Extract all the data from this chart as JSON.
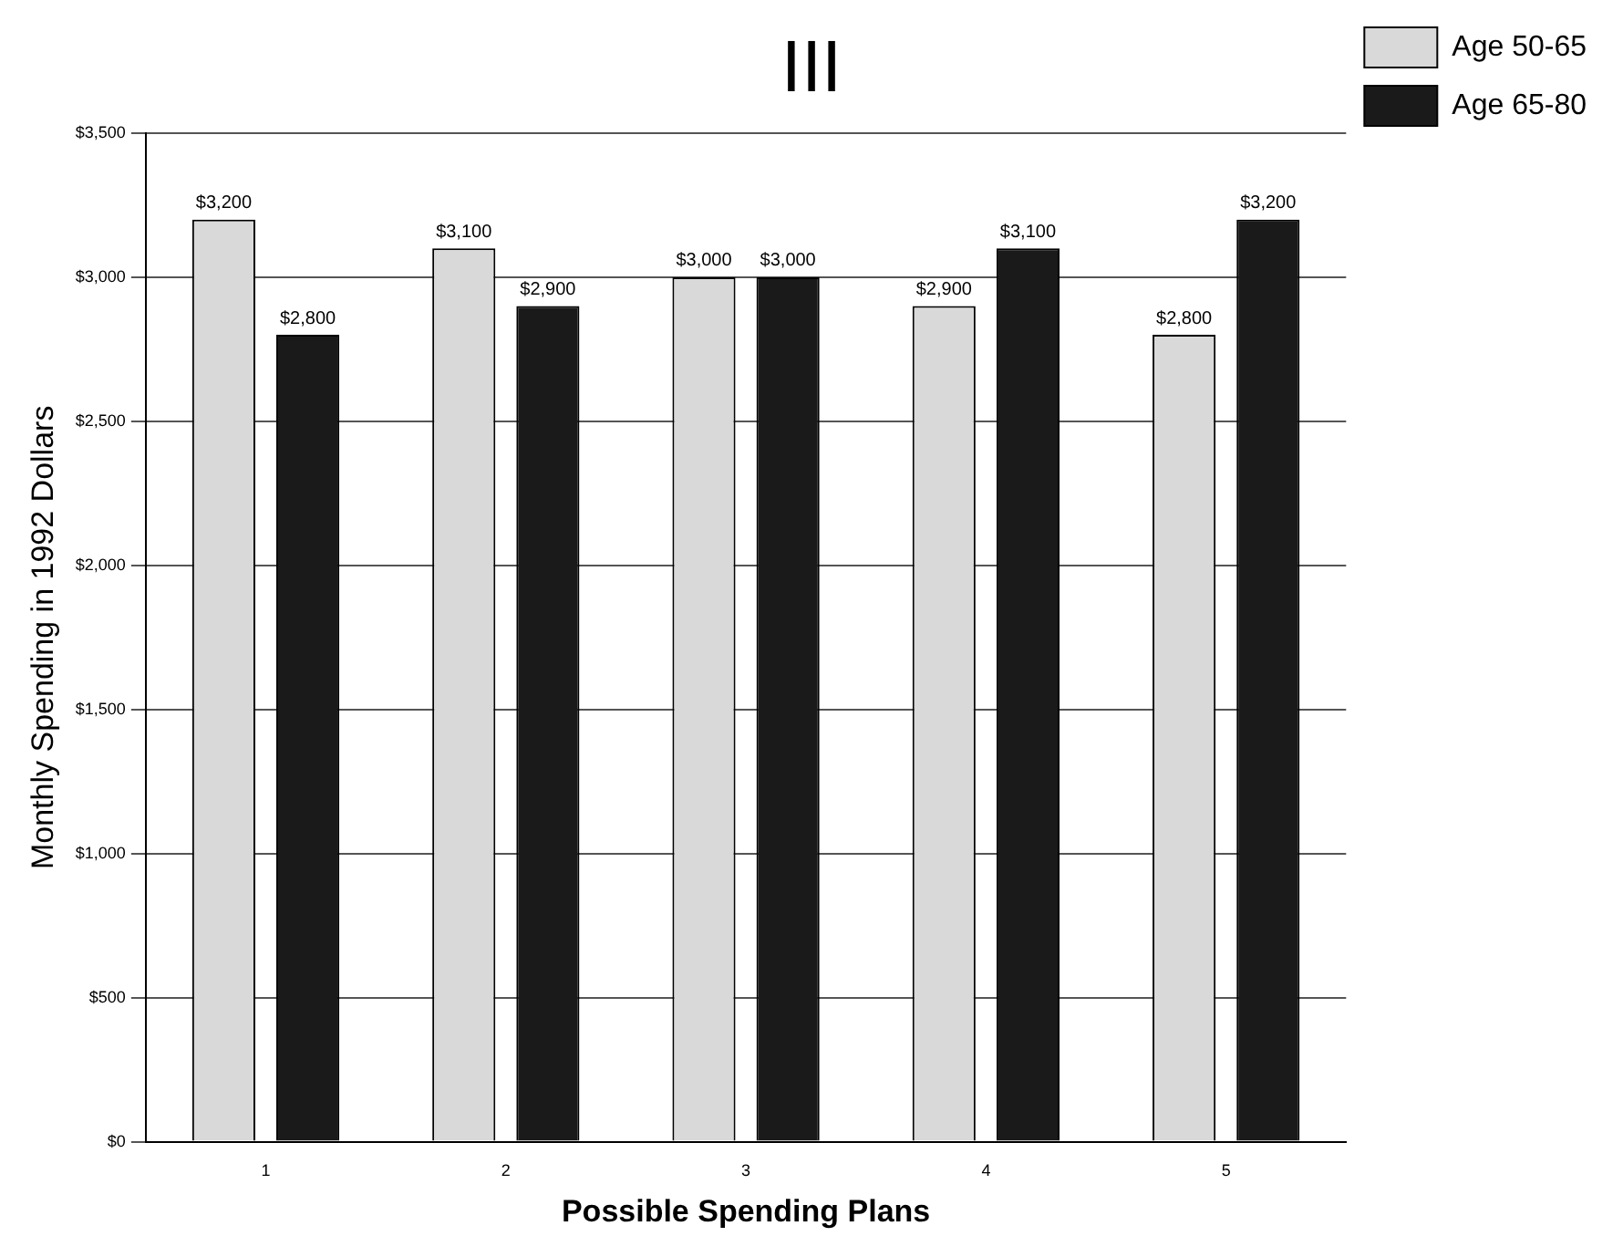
{
  "chart_data": {
    "type": "bar",
    "title": "III",
    "xlabel": "Possible Spending Plans",
    "ylabel": "Monthly Spending in 1992 Dollars",
    "categories": [
      "1",
      "2",
      "3",
      "4",
      "5"
    ],
    "series": [
      {
        "name": "Age 50-65",
        "color": "#d9d9d9",
        "values": [
          3200,
          3100,
          3000,
          2900,
          2800
        ],
        "value_labels": [
          "$3,200",
          "$3,100",
          "$3,000",
          "$2,900",
          "$2,800"
        ]
      },
      {
        "name": "Age 65-80",
        "color": "#1a1a1a",
        "values": [
          2800,
          2900,
          3000,
          3100,
          3200
        ],
        "value_labels": [
          "$2,800",
          "$2,900",
          "$3,000",
          "$3,100",
          "$3,200"
        ]
      }
    ],
    "ylim": [
      0,
      3500
    ],
    "yticks": [
      {
        "value": 0,
        "label": "$0"
      },
      {
        "value": 500,
        "label": "$500"
      },
      {
        "value": 1000,
        "label": "$1,000"
      },
      {
        "value": 1500,
        "label": "$1,500"
      },
      {
        "value": 2000,
        "label": "$2,000"
      },
      {
        "value": 2500,
        "label": "$2,500"
      },
      {
        "value": 3000,
        "label": "$3,000"
      },
      {
        "value": 3500,
        "label": "$3,500"
      }
    ],
    "grid": "y",
    "legend": "right"
  }
}
